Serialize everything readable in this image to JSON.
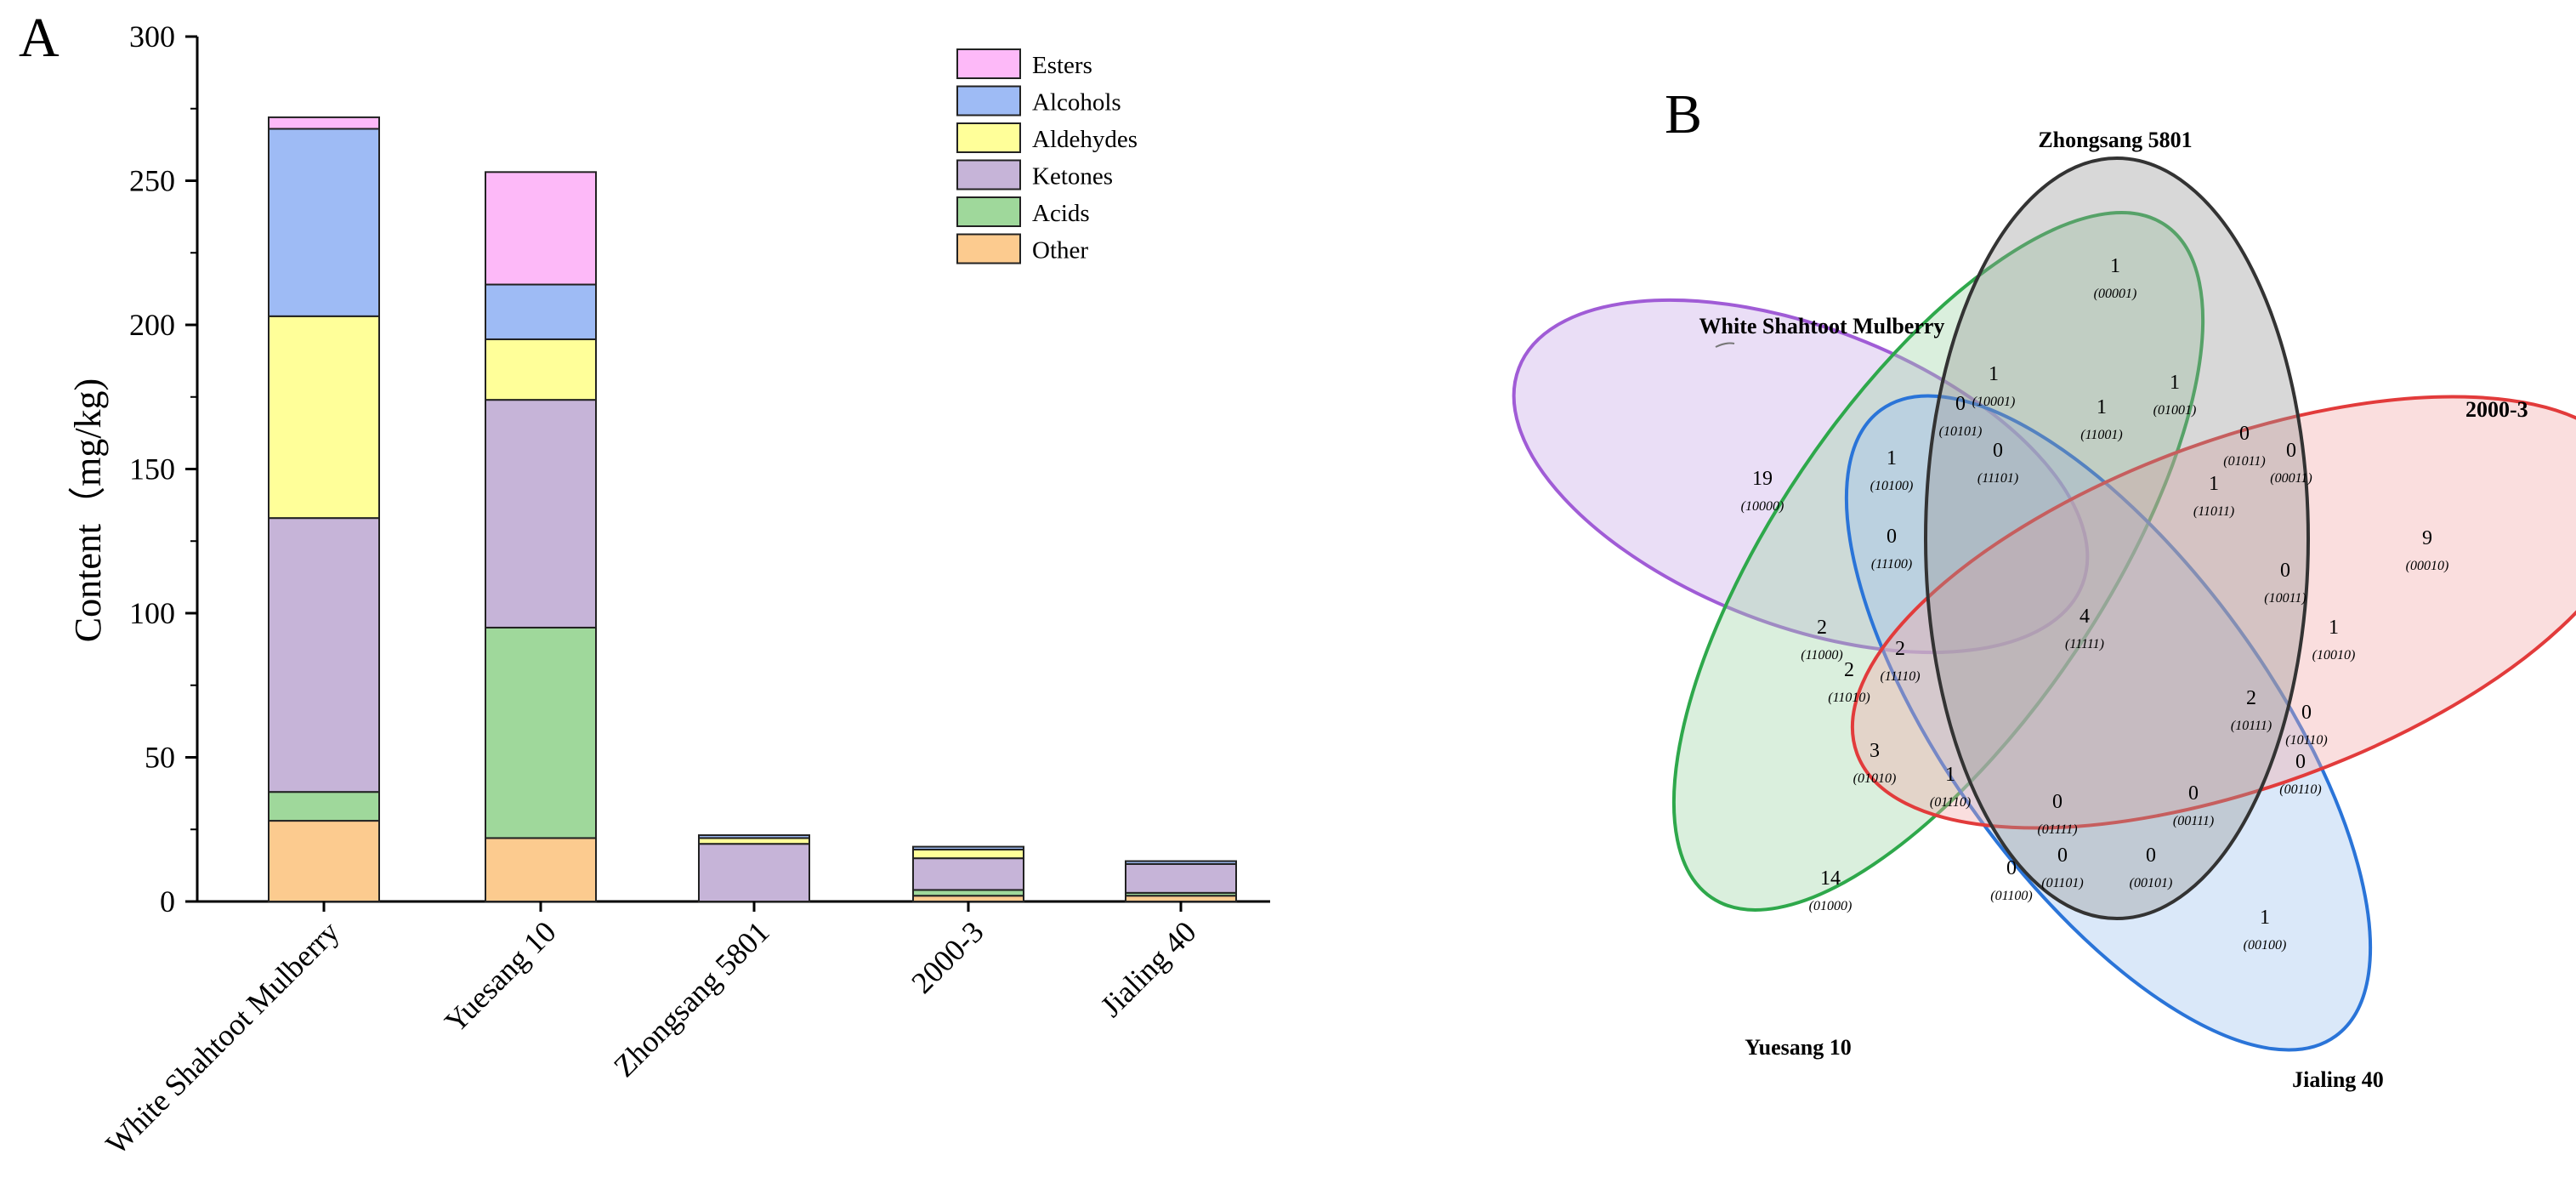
{
  "panel_a": {
    "letter": "A"
  },
  "panel_b": {
    "letter": "B"
  },
  "chart_data": [
    {
      "type": "bar",
      "stacked": true,
      "title": "",
      "xlabel": "",
      "ylabel": "Content（mg/kg)",
      "ylim": [
        0,
        300
      ],
      "yticks": [
        0,
        50,
        100,
        150,
        200,
        250,
        300
      ],
      "categories": [
        "White Shahtoot Mulberry",
        "Yuesang 10",
        "Zhongsang 5801",
        "2000-3",
        "Jialing 40"
      ],
      "legend_position": "top-right",
      "series": [
        {
          "name": "Other",
          "color": "#FCCB8F",
          "values": [
            28,
            22,
            0,
            2,
            2
          ]
        },
        {
          "name": "Acids",
          "color": "#9FD89B",
          "values": [
            10,
            73,
            0,
            2,
            1
          ]
        },
        {
          "name": "Ketones",
          "color": "#C6B4D8",
          "values": [
            95,
            79,
            20,
            11,
            10
          ]
        },
        {
          "name": "Aldehydes",
          "color": "#FFFF99",
          "values": [
            70,
            21,
            2,
            3,
            0
          ]
        },
        {
          "name": "Alcohols",
          "color": "#9EBBF5",
          "values": [
            65,
            19,
            1,
            1,
            1
          ]
        },
        {
          "name": "Esters",
          "color": "#FDB9F8",
          "values": [
            4,
            39,
            0,
            0,
            0
          ]
        }
      ],
      "legend_order": [
        "Esters",
        "Alcohols",
        "Aldehydes",
        "Ketones",
        "Acids",
        "Other"
      ]
    },
    {
      "type": "venn",
      "sets": [
        {
          "name": "White Shahtoot Mulberry",
          "color": "#A05CD6",
          "fill": "#C9A9E8"
        },
        {
          "name": "Yuesang 10",
          "color": "#2EA84B",
          "fill": "#9DD6A5"
        },
        {
          "name": "Jialing 40",
          "color": "#2A74D8",
          "fill": "#9EC3EE"
        },
        {
          "name": "2000-3",
          "color": "#E23B3B",
          "fill": "#F2A7A7"
        },
        {
          "name": "Zhongsang 5801",
          "color": "#333333",
          "fill": "#999999"
        }
      ],
      "regions": [
        {
          "count": "1",
          "code": "(00001)"
        },
        {
          "count": "1",
          "code": "(10001)"
        },
        {
          "count": "1",
          "code": "(01001)"
        },
        {
          "count": "0",
          "code": "(10101)"
        },
        {
          "count": "1",
          "code": "(11001)"
        },
        {
          "count": "0",
          "code": "(11101)"
        },
        {
          "count": "0",
          "code": "(01011)"
        },
        {
          "count": "0",
          "code": "(00011)"
        },
        {
          "count": "19",
          "code": "(10000)"
        },
        {
          "count": "1",
          "code": "(10100)"
        },
        {
          "count": "1",
          "code": "(11011)"
        },
        {
          "count": "9",
          "code": "(00010)"
        },
        {
          "count": "0",
          "code": "(11100)"
        },
        {
          "count": "0",
          "code": "(10011)"
        },
        {
          "count": "4",
          "code": "(11111)"
        },
        {
          "count": "1",
          "code": "(10010)"
        },
        {
          "count": "2",
          "code": "(11000)"
        },
        {
          "count": "2",
          "code": "(11110)"
        },
        {
          "count": "2",
          "code": "(11010)"
        },
        {
          "count": "2",
          "code": "(10111)"
        },
        {
          "count": "0",
          "code": "(10110)"
        },
        {
          "count": "0",
          "code": "(00110)"
        },
        {
          "count": "3",
          "code": "(01010)"
        },
        {
          "count": "1",
          "code": "(01110)"
        },
        {
          "count": "0",
          "code": "(01111)"
        },
        {
          "count": "0",
          "code": "(00111)"
        },
        {
          "count": "14",
          "code": "(01000)"
        },
        {
          "count": "0",
          "code": "(01100)"
        },
        {
          "count": "0",
          "code": "(01101)"
        },
        {
          "count": "0",
          "code": "(00101)"
        },
        {
          "count": "1",
          "code": "(00100)"
        }
      ]
    }
  ]
}
